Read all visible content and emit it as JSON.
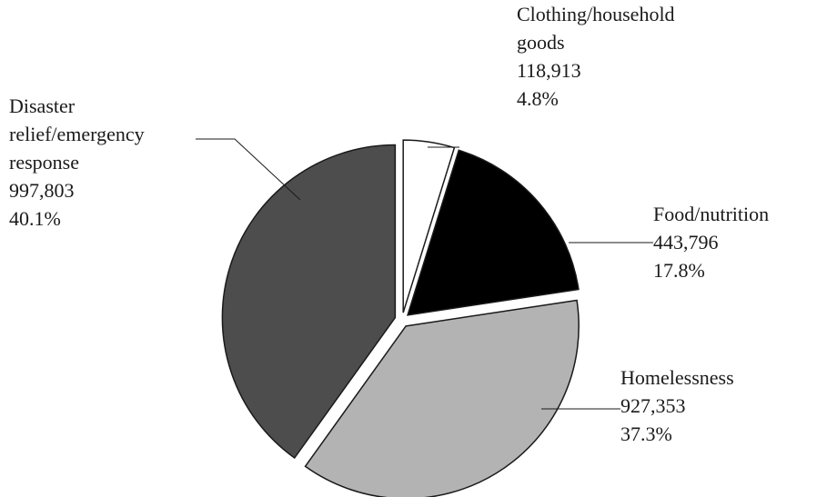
{
  "chart_data": {
    "type": "pie",
    "categories": [
      "Clothing/household\ngoods",
      "Food/nutrition",
      "Homelessness",
      "Disaster\nrelief/emergency\nresponse"
    ],
    "values": [
      118913,
      443796,
      927353,
      997803
    ],
    "value_labels": [
      "118,913",
      "443,796",
      "927,353",
      "997,803"
    ],
    "percent_labels": [
      "4.8%",
      "17.8%",
      "37.3%",
      "40.1%"
    ],
    "colors": [
      "#ffffff",
      "#000000",
      "#b3b3b3",
      "#4d4d4d"
    ]
  }
}
